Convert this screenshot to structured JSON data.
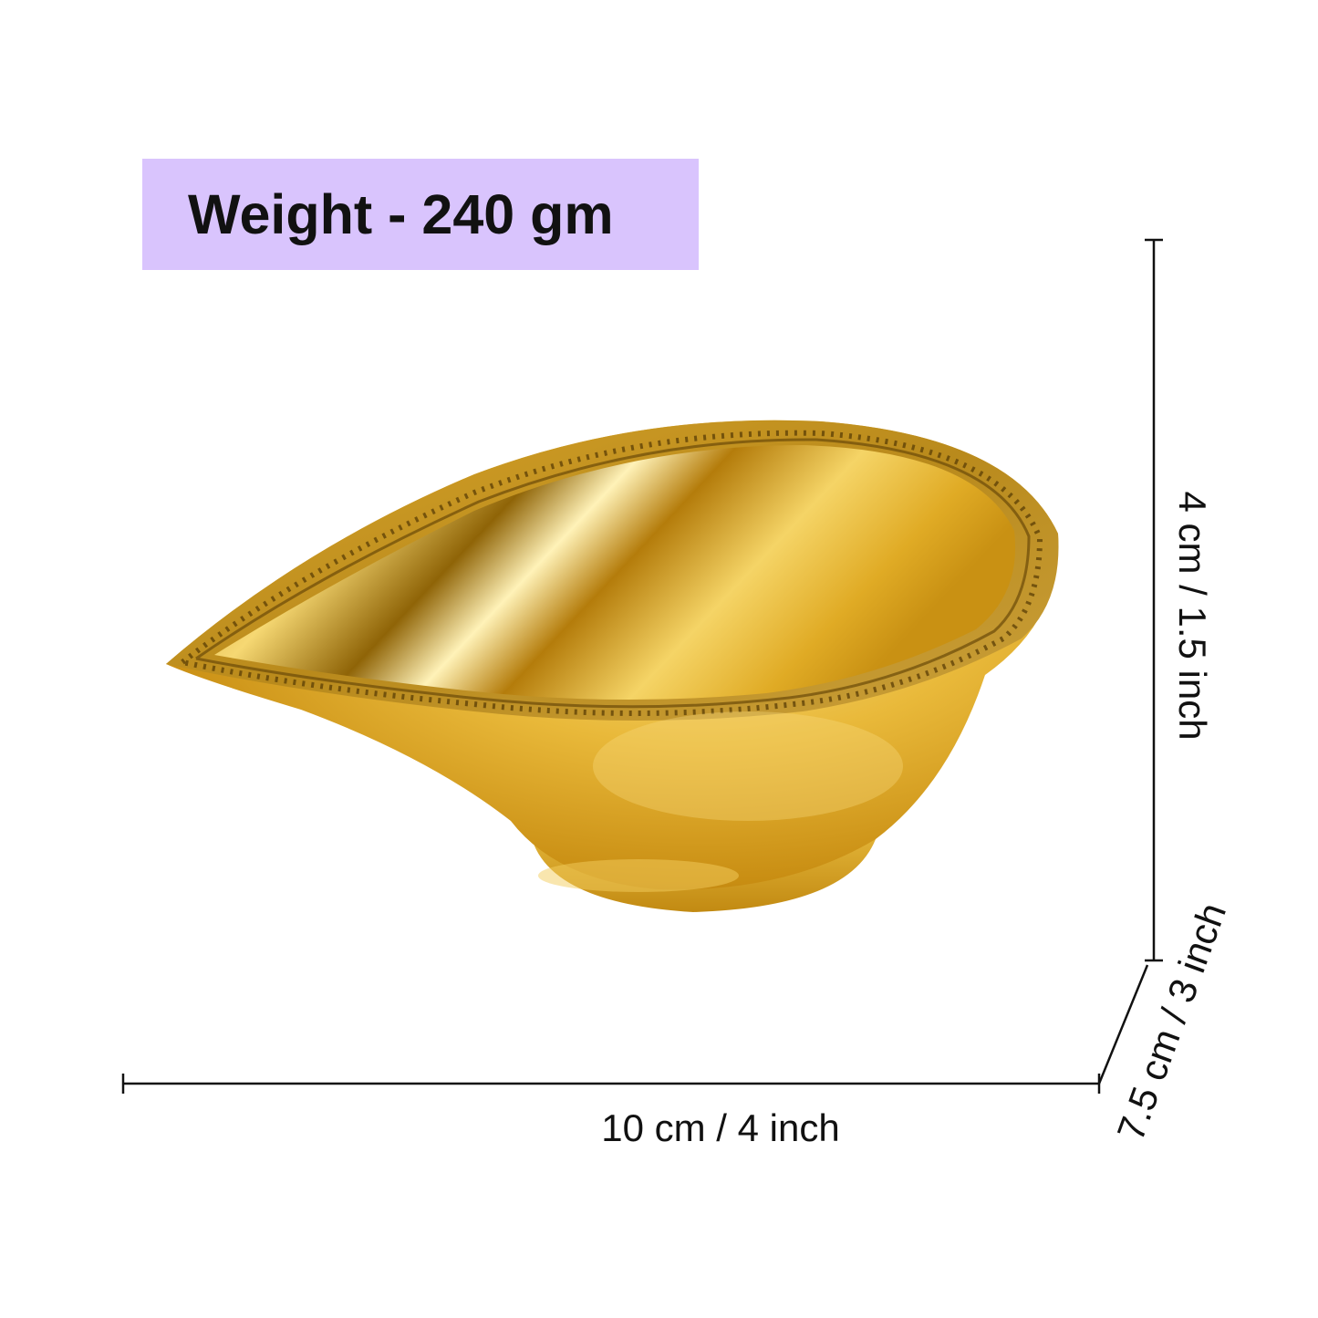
{
  "weight": {
    "label": "Weight - 240 gm"
  },
  "dimensions": {
    "width_label": "10 cm / 4 inch",
    "height_label": "4 cm / 1.5 inch",
    "depth_label": "7.5 cm / 3 inch"
  },
  "colors": {
    "badge_background": "#d9c4fd",
    "brass_light": "#fbe79a",
    "brass_mid": "#e3b22e",
    "brass_dark": "#8a6208",
    "line": "#111111"
  }
}
